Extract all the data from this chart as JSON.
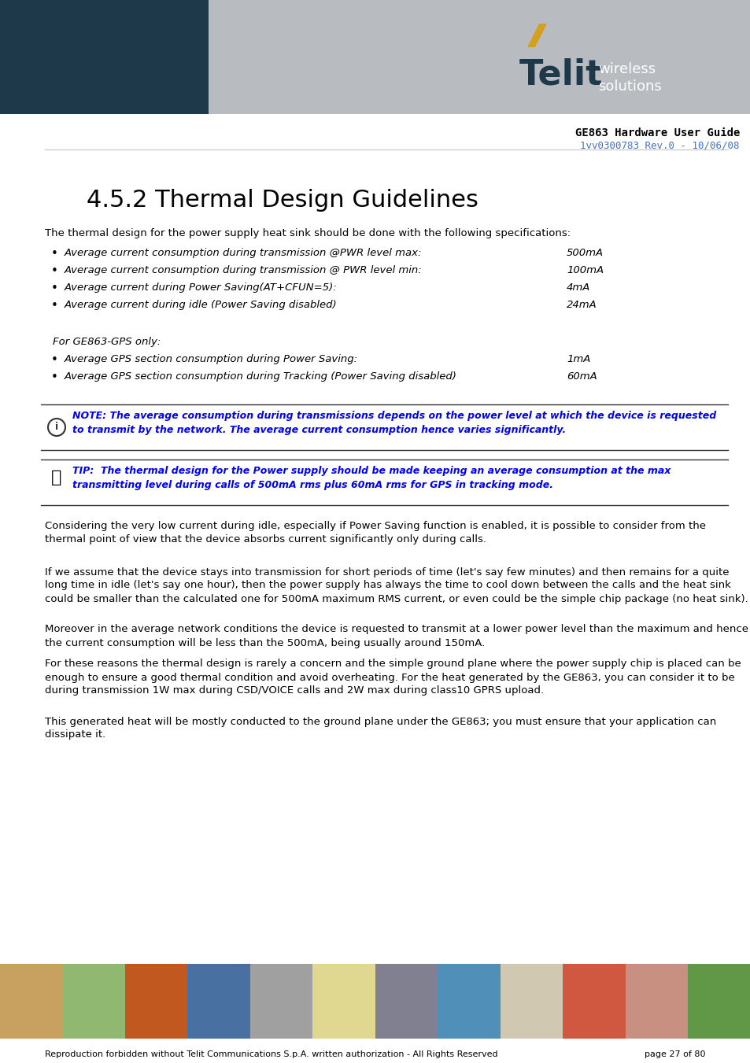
{
  "page_bg": "#ffffff",
  "header_left_bg": "#1e3a4a",
  "header_right_bg": "#b8bcc0",
  "header_title": "GE863 Hardware User Guide",
  "header_subtitle": "1vv0300783 Rev.0 - 10/06/08",
  "header_title_color": "#000000",
  "header_subtitle_color": "#4472c4",
  "section_title": "4.5.2 Thermal Design Guidelines",
  "section_title_color": "#000000",
  "intro_text": "The thermal design for the power supply heat sink should be done with the following specifications:",
  "bullet_items": [
    {
      "text": "Average current consumption during transmission @PWR level max:",
      "value": "500mA"
    },
    {
      "text": "Average current consumption during transmission @ PWR level min:",
      "value": "100mA"
    },
    {
      "text": "Average current during Power Saving(AT+CFUN=5):",
      "value": "4mA"
    },
    {
      "text": "Average current during idle (Power Saving disabled)",
      "value": "24mA"
    }
  ],
  "gps_label": "For GE863-GPS only:",
  "gps_bullets": [
    {
      "text": "Average GPS section consumption during Power Saving:",
      "value": "1mA"
    },
    {
      "text": "Average GPS section consumption during Tracking (Power Saving disabled)",
      "value": "60mA"
    }
  ],
  "note_text": "NOTE: The average consumption during transmissions depends on the power level at which the device is requested to transmit by the network. The average current consumption hence varies significantly.",
  "tip_text": "TIP:  The thermal design for the Power supply should be made keeping an average consumption at the max transmitting level during calls of 500mA rms plus 60mA rms for GPS in tracking mode.",
  "body_paragraphs": [
    "Considering the very low current during idle, especially if Power Saving function is enabled, it is possible to consider from the thermal point of view that the device absorbs current significantly only during calls.",
    "If we assume that the device stays into transmission for short periods of time (let's say few minutes) and then remains for a quite long time in idle (let's say one hour), then the power supply has always the time to cool down between the calls and the heat sink could be smaller than the calculated one for 500mA maximum RMS current, or even could be the simple chip package (no heat sink).",
    "Moreover in the average network conditions the device is requested to transmit at a lower power level than the maximum and hence the current consumption will be less than the 500mA, being usually around 150mA.",
    "For these reasons the thermal design is rarely a concern and the simple ground plane where the power supply chip is placed can be enough to ensure a good thermal condition and avoid overheating. For the heat generated by the GE863, you can consider it to be during transmission 1W max during CSD/VOICE calls and 2W max during class10 GPRS upload.",
    "This generated heat will be mostly conducted to the ground plane under the GE863; you must ensure that your application can dissipate it."
  ],
  "footer_text": "Reproduction forbidden without Telit Communications S.p.A. written authorization - All Rights Reserved",
  "footer_page": "page 27 of 80",
  "blue_color": "#0000ff",
  "body_text_color": "#000000",
  "line_color": "#000000"
}
